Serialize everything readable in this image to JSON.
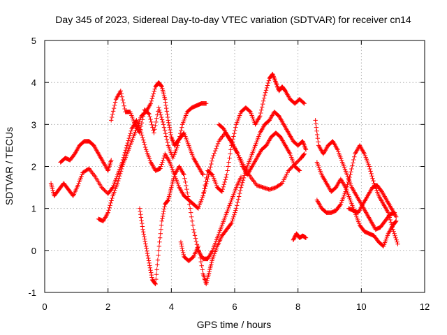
{
  "chart_data": {
    "type": "scatter",
    "title": "Day 345 of 2023, Sidereal Day-to-day VTEC variation (SDTVAR) for receiver cn14",
    "xlabel": "GPS time / hours",
    "ylabel": "SDTVAR / TECUs",
    "xlim": [
      0,
      12
    ],
    "ylim": [
      -1,
      5
    ],
    "xticks": [
      0,
      2,
      4,
      6,
      8,
      10,
      12
    ],
    "yticks": [
      -1,
      0,
      1,
      2,
      3,
      4,
      5
    ],
    "grid": true,
    "marker": "plus",
    "color": "#ff0000",
    "series": [
      {
        "x": [
          0.2,
          0.3,
          0.45,
          0.6,
          0.75,
          0.9,
          1.05,
          1.2,
          1.4,
          1.6,
          1.8,
          2.0,
          2.15,
          2.3,
          2.45,
          2.6,
          2.75,
          2.9,
          3.05,
          3.2,
          3.35,
          3.5,
          3.65,
          3.8,
          3.95,
          4.1,
          4.25,
          4.4,
          4.55,
          4.7,
          4.85,
          5.0,
          5.15,
          5.3,
          5.5,
          5.7,
          5.9,
          6.1,
          6.3,
          6.5,
          6.7,
          6.9,
          7.1,
          7.3,
          7.5,
          7.7,
          7.9,
          8.1,
          8.2
        ],
        "y": [
          1.6,
          1.3,
          1.45,
          1.6,
          1.45,
          1.3,
          1.55,
          1.85,
          1.95,
          1.75,
          1.5,
          1.35,
          1.5,
          1.8,
          2.1,
          2.5,
          2.9,
          3.1,
          2.8,
          2.4,
          2.1,
          1.9,
          1.95,
          2.3,
          2.1,
          1.8,
          1.5,
          1.3,
          1.2,
          1.1,
          1.0,
          1.3,
          1.7,
          2.2,
          2.6,
          2.8,
          2.6,
          2.3,
          2.0,
          1.75,
          1.55,
          1.5,
          1.45,
          1.5,
          1.6,
          1.9,
          2.05,
          2.2,
          2.3
        ]
      },
      {
        "x": [
          0.5,
          0.65,
          0.8,
          0.95,
          1.1,
          1.25,
          1.4,
          1.55,
          1.7,
          1.85,
          2.0,
          2.1
        ],
        "y": [
          2.1,
          2.2,
          2.15,
          2.3,
          2.5,
          2.6,
          2.6,
          2.5,
          2.3,
          2.1,
          1.9,
          2.15
        ]
      },
      {
        "x": [
          2.1,
          2.25,
          2.4,
          2.55,
          2.7,
          2.85,
          3.0,
          3.15,
          3.3,
          3.45,
          3.6,
          3.75,
          3.9,
          4.05,
          4.2,
          4.35,
          4.5,
          4.65,
          4.8,
          4.95,
          5.1
        ],
        "y": [
          3.1,
          3.6,
          3.8,
          3.3,
          3.3,
          3.0,
          2.8,
          3.35,
          3.25,
          2.8,
          3.4,
          3.0,
          2.5,
          2.2,
          2.5,
          3.0,
          3.3,
          3.4,
          3.45,
          3.5,
          3.5
        ]
      },
      {
        "x": [
          1.7,
          1.85,
          2.0,
          2.15,
          2.3,
          2.45,
          2.6,
          2.75,
          2.9,
          3.05,
          3.2,
          3.35,
          3.5,
          3.6,
          3.7,
          3.8,
          3.9,
          4.0,
          4.1,
          4.2,
          4.3,
          4.4,
          4.55,
          4.7,
          4.85,
          5.0
        ],
        "y": [
          0.75,
          0.7,
          0.9,
          1.3,
          1.6,
          2.0,
          2.3,
          2.6,
          2.9,
          3.2,
          3.3,
          3.5,
          3.9,
          4.0,
          3.9,
          3.6,
          3.1,
          2.7,
          2.5,
          2.6,
          2.7,
          2.8,
          2.5,
          2.2,
          2.0,
          1.8
        ]
      },
      {
        "x": [
          3.0,
          3.1,
          3.2,
          3.3,
          3.4,
          3.5,
          3.6,
          3.7,
          3.8,
          3.9,
          4.0,
          4.1,
          4.25,
          4.4,
          4.55,
          4.7,
          4.85,
          5.0,
          5.15,
          5.3,
          5.45,
          5.6,
          5.75,
          5.9,
          6.05,
          6.2
        ],
        "y": [
          1.0,
          0.5,
          0.1,
          -0.3,
          -0.7,
          -0.8,
          0.0,
          0.7,
          1.1,
          1.2,
          1.5,
          1.8,
          2.0,
          1.8,
          1.2,
          0.5,
          0.0,
          -0.2,
          -0.2,
          0.0,
          0.3,
          0.6,
          0.9,
          1.2,
          1.5,
          1.75
        ]
      },
      {
        "x": [
          4.3,
          4.4,
          4.55,
          4.7,
          4.85,
          5.0,
          5.1,
          5.2,
          5.3,
          5.45,
          5.6,
          5.75,
          5.9,
          6.05,
          6.2,
          6.35,
          6.5,
          6.65,
          6.8,
          6.95,
          7.1,
          7.25,
          7.4,
          7.55,
          7.7,
          7.85,
          8.0,
          8.15,
          8.25
        ],
        "y": [
          0.2,
          -0.15,
          -0.25,
          -0.15,
          0.1,
          -0.55,
          -0.8,
          -0.5,
          -0.2,
          0.1,
          0.35,
          0.5,
          0.65,
          1.0,
          1.5,
          1.9,
          2.2,
          2.5,
          2.8,
          3.0,
          3.1,
          3.3,
          3.2,
          3.0,
          2.8,
          2.6,
          2.5,
          2.6,
          2.4
        ]
      },
      {
        "x": [
          5.0,
          5.15,
          5.3,
          5.45,
          5.6,
          5.75,
          5.9,
          6.05,
          6.2,
          6.35,
          6.5,
          6.65,
          6.8,
          6.95,
          7.1,
          7.2,
          7.3,
          7.4,
          7.5,
          7.6,
          7.75,
          7.9,
          8.05,
          8.2
        ],
        "y": [
          1.3,
          1.9,
          1.8,
          1.5,
          1.4,
          1.8,
          2.5,
          3.0,
          3.3,
          3.4,
          3.3,
          3.0,
          3.2,
          3.7,
          4.1,
          4.2,
          4.0,
          3.8,
          3.9,
          3.8,
          3.6,
          3.5,
          3.6,
          3.5
        ]
      },
      {
        "x": [
          5.5,
          5.65,
          5.8,
          5.95,
          6.1,
          6.25,
          6.4,
          6.55,
          6.7,
          6.85,
          7.0,
          7.15,
          7.3,
          7.45,
          7.6,
          7.75,
          7.9,
          8.05
        ],
        "y": [
          3.0,
          2.9,
          2.7,
          2.5,
          2.3,
          2.0,
          1.8,
          2.0,
          2.2,
          2.4,
          2.5,
          2.7,
          2.8,
          2.7,
          2.5,
          2.3,
          2.0,
          1.9
        ]
      },
      {
        "x": [
          7.85,
          7.95,
          8.05,
          8.15,
          8.25
        ],
        "y": [
          0.25,
          0.4,
          0.3,
          0.35,
          0.3
        ]
      },
      {
        "x": [
          8.55,
          8.65,
          8.8,
          8.95,
          9.1,
          9.25,
          9.4,
          9.55,
          9.7,
          9.85,
          10.0,
          10.15,
          10.3,
          10.45,
          10.6,
          10.75,
          10.9,
          11.05
        ],
        "y": [
          3.1,
          2.5,
          2.3,
          2.5,
          2.6,
          2.4,
          2.1,
          1.8,
          1.5,
          1.3,
          1.1,
          0.9,
          0.7,
          0.5,
          0.55,
          0.7,
          0.85,
          0.9
        ]
      },
      {
        "x": [
          8.6,
          8.75,
          8.9,
          9.05,
          9.2,
          9.35,
          9.5,
          9.65,
          9.8,
          9.95,
          10.1,
          10.25,
          10.4,
          10.55,
          10.7,
          10.85,
          11.0,
          11.1
        ],
        "y": [
          2.1,
          1.8,
          1.6,
          1.4,
          1.5,
          1.7,
          1.5,
          1.2,
          0.9,
          0.6,
          0.45,
          0.4,
          0.35,
          0.2,
          0.1,
          0.4,
          0.6,
          0.7
        ]
      },
      {
        "x": [
          8.6,
          8.75,
          8.9,
          9.05,
          9.2,
          9.35,
          9.5,
          9.65,
          9.8,
          9.95,
          10.1,
          10.25,
          10.4,
          10.55,
          10.7,
          10.85,
          11.0,
          11.15
        ],
        "y": [
          1.2,
          1.0,
          0.9,
          0.9,
          0.95,
          1.1,
          1.4,
          1.8,
          2.3,
          2.5,
          2.3,
          2.0,
          1.6,
          1.3,
          1.1,
          0.9,
          0.5,
          0.15
        ]
      },
      {
        "x": [
          9.6,
          9.75,
          9.9,
          10.05,
          10.2,
          10.35,
          10.5,
          10.65,
          10.8,
          10.95,
          11.1
        ],
        "y": [
          1.0,
          0.95,
          0.9,
          1.1,
          1.3,
          1.5,
          1.55,
          1.4,
          1.2,
          1.0,
          0.8
        ]
      }
    ]
  }
}
